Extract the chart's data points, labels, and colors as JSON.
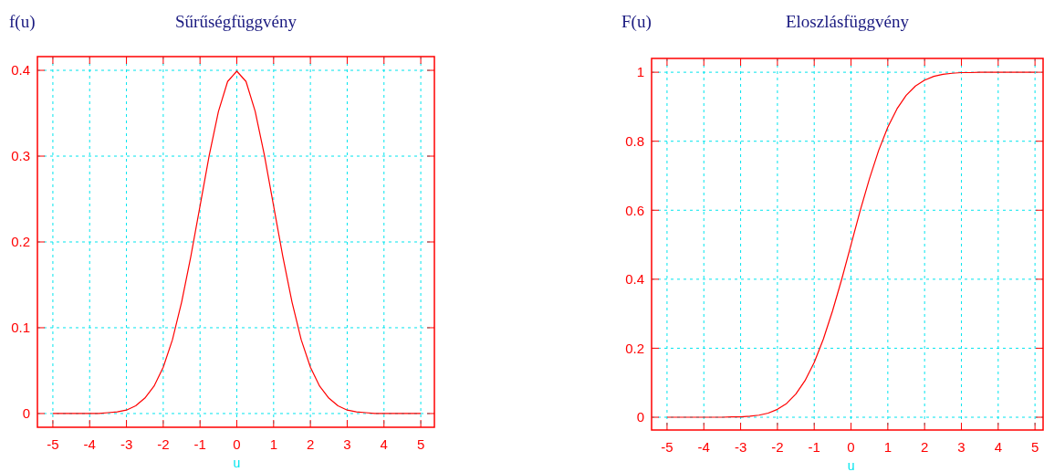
{
  "chart_data": [
    {
      "type": "line",
      "title": "Sűrűségfüggvény",
      "ylabel": "f(u)",
      "xlabel": "u",
      "grid": true,
      "line_style": "solid",
      "xlim": [
        -5.42,
        5.37
      ],
      "ylim": [
        -0.016,
        0.416
      ],
      "xticks": [
        -5,
        -4,
        -3,
        -2,
        -1,
        0,
        1,
        2,
        3,
        4,
        5
      ],
      "yticks": [
        0,
        0.1,
        0.2,
        0.3,
        0.4
      ],
      "x": [
        -5,
        -4.75,
        -4.5,
        -4.25,
        -4,
        -3.75,
        -3.5,
        -3.25,
        -3,
        -2.75,
        -2.5,
        -2.25,
        -2,
        -1.75,
        -1.5,
        -1.25,
        -1,
        -0.75,
        -0.5,
        -0.25,
        0,
        0.25,
        0.5,
        0.75,
        1,
        1.25,
        1.5,
        1.75,
        2,
        2.25,
        2.5,
        2.75,
        3,
        3.25,
        3.5,
        3.75,
        4,
        4.25,
        4.5,
        4.75,
        5
      ],
      "series": [
        {
          "color": "#ff0000",
          "values": [
            0,
            0,
            0,
            0,
            0,
            0,
            0.001,
            0.002,
            0.004,
            0.009,
            0.018,
            0.032,
            0.054,
            0.086,
            0.13,
            0.183,
            0.242,
            0.301,
            0.352,
            0.387,
            0.399,
            0.387,
            0.352,
            0.301,
            0.242,
            0.183,
            0.13,
            0.086,
            0.054,
            0.032,
            0.018,
            0.009,
            0.004,
            0.002,
            0.001,
            0,
            0,
            0,
            0,
            0,
            0
          ]
        }
      ]
    },
    {
      "type": "line",
      "title": "Eloszlásfüggvény",
      "ylabel": "F(u)",
      "xlabel": "u",
      "grid": true,
      "line_style": "solid",
      "xlim": [
        -5.42,
        5.22
      ],
      "ylim": [
        -0.037,
        1.04
      ],
      "xticks": [
        -5,
        -4,
        -3,
        -2,
        -1,
        0,
        1,
        2,
        3,
        4,
        5
      ],
      "yticks": [
        0,
        0.2,
        0.4,
        0.6,
        0.8,
        1
      ],
      "x": [
        -5,
        -4.75,
        -4.5,
        -4.25,
        -4,
        -3.75,
        -3.5,
        -3.25,
        -3,
        -2.75,
        -2.5,
        -2.25,
        -2,
        -1.75,
        -1.5,
        -1.25,
        -1,
        -0.75,
        -0.5,
        -0.25,
        0,
        0.25,
        0.5,
        0.75,
        1,
        1.25,
        1.5,
        1.75,
        2,
        2.25,
        2.5,
        2.75,
        3,
        3.25,
        3.5,
        3.75,
        4,
        4.25,
        4.5,
        4.75,
        5
      ],
      "series": [
        {
          "color": "#ff0000",
          "values": [
            0,
            0,
            0,
            0,
            0,
            0,
            0,
            0.001,
            0.001,
            0.003,
            0.006,
            0.012,
            0.023,
            0.04,
            0.067,
            0.106,
            0.159,
            0.227,
            0.309,
            0.401,
            0.5,
            0.599,
            0.691,
            0.773,
            0.841,
            0.894,
            0.933,
            0.96,
            0.977,
            0.988,
            0.994,
            0.997,
            0.999,
            0.999,
            1,
            1,
            1,
            1,
            1,
            1,
            1
          ]
        }
      ]
    }
  ]
}
